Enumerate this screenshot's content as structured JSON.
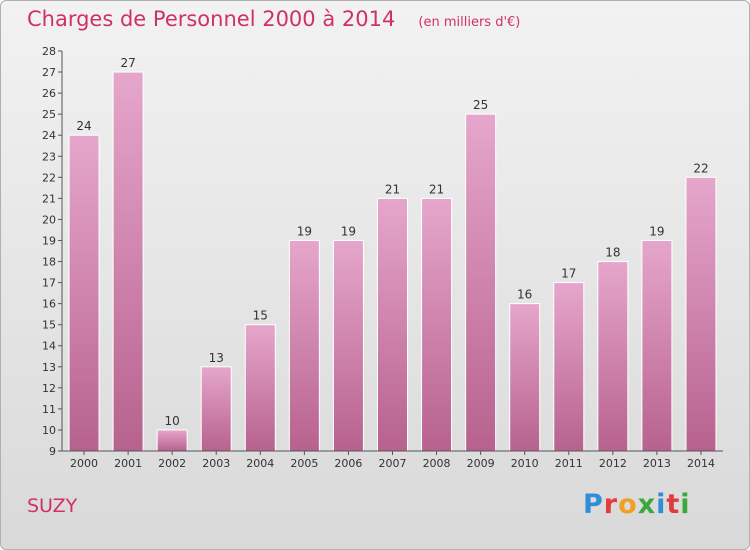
{
  "header": {
    "title": "Charges de Personnel 2000 à 2014",
    "unit": "(en milliers d'€)"
  },
  "footer": {
    "commune": "SUZY",
    "logo_letters": [
      {
        "char": "P",
        "color": "#2f8fd6"
      },
      {
        "char": "r",
        "color": "#e23b3b"
      },
      {
        "char": "o",
        "color": "#f0a023"
      },
      {
        "char": "x",
        "color": "#3aa83a"
      },
      {
        "char": "i",
        "color": "#2f8fd6"
      },
      {
        "char": "t",
        "color": "#e23b3b"
      },
      {
        "char": "i",
        "color": "#3aa83a"
      }
    ]
  },
  "colors": {
    "title": "#d0306a",
    "bar_top": "#e6a6cc",
    "bar_bottom": "#b7628e"
  },
  "chart_data": {
    "type": "bar",
    "title": "Charges de Personnel 2000 à 2014",
    "subtitle": "(en milliers d'€)",
    "categories": [
      "2000",
      "2001",
      "2002",
      "2003",
      "2004",
      "2005",
      "2006",
      "2007",
      "2008",
      "2009",
      "2010",
      "2011",
      "2012",
      "2013",
      "2014"
    ],
    "values": [
      24,
      27,
      10,
      13,
      15,
      19,
      19,
      21,
      21,
      25,
      16,
      17,
      18,
      19,
      22
    ],
    "ylim": [
      9,
      28
    ],
    "yticks": [
      9,
      10,
      11,
      12,
      13,
      14,
      15,
      16,
      17,
      18,
      19,
      20,
      21,
      22,
      23,
      24,
      25,
      26,
      27,
      28
    ],
    "grid": false,
    "data_labels": true
  }
}
